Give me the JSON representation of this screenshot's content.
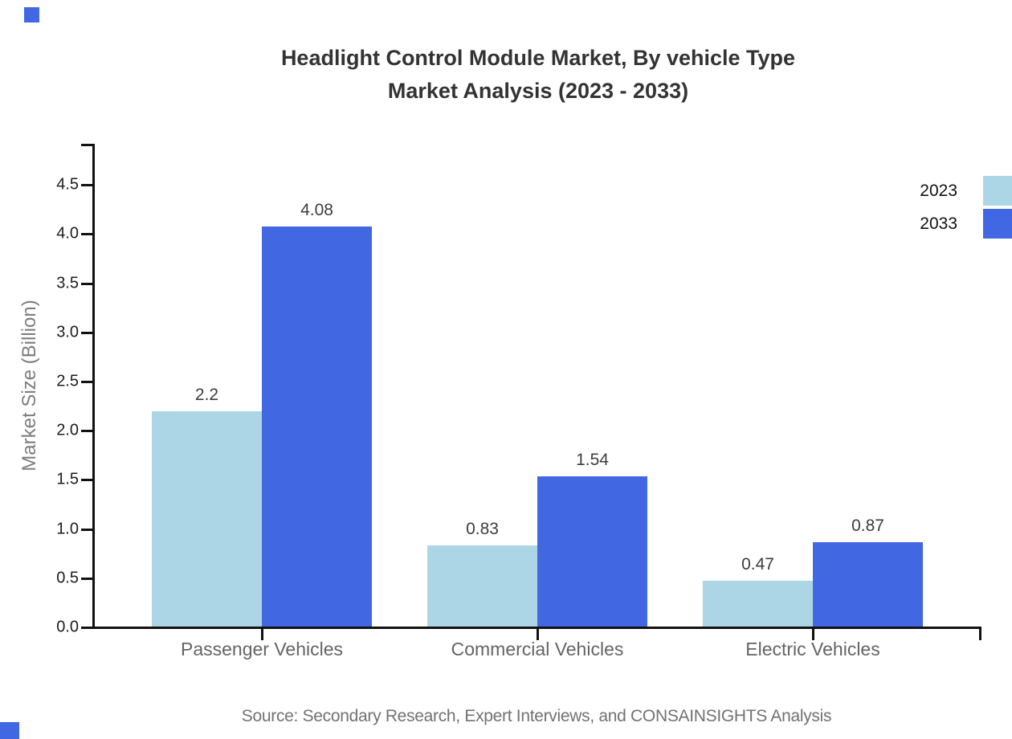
{
  "title": {
    "line1": "Headlight Control Module Market, By vehicle Type",
    "line2": "Market Analysis (2023 - 2033)"
  },
  "source_text": "Source: Secondary Research, Expert Interviews, and CONSAINSIGHTS Analysis",
  "colors": {
    "series_2023": "#ACD5E5",
    "series_2033": "#4267E2",
    "brand_square": "#4267E2",
    "axis": "#111111"
  },
  "chart_data": {
    "type": "bar",
    "categories": [
      "Passenger Vehicles",
      "Commercial Vehicles",
      "Electric Vehicles"
    ],
    "series": [
      {
        "name": "2023",
        "color": "#ACD5E5",
        "values": [
          2.2,
          0.83,
          0.47
        ]
      },
      {
        "name": "2033",
        "color": "#4267E2",
        "values": [
          4.08,
          1.54,
          0.87
        ]
      }
    ],
    "title": "Headlight Control Module Market, By vehicle Type Market Analysis (2023 - 2033)",
    "xlabel": "",
    "ylabel": "Market Size (Billion)",
    "ylim": [
      0,
      4.5
    ],
    "ytick_labels": [
      "0.0",
      "0.5",
      "1.0",
      "1.5",
      "2.0",
      "2.5",
      "3.0",
      "3.5",
      "4.0",
      "4.5"
    ],
    "grid": false,
    "legend_position": "top-right",
    "bar_value_labels": true
  }
}
